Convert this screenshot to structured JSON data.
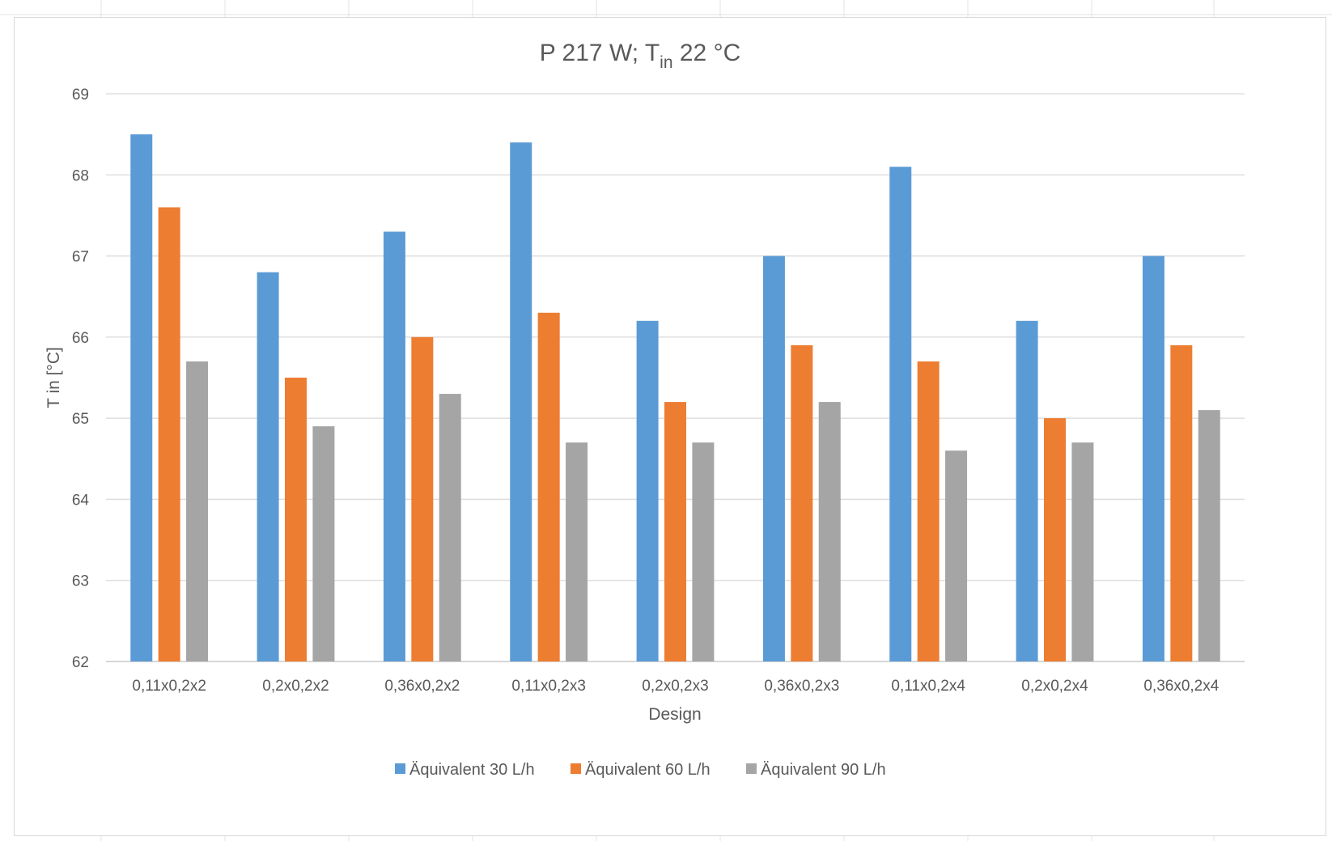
{
  "chart_data": {
    "type": "bar",
    "title": "P 217 W; T",
    "title_subscript": "in",
    "title_suffix": " 22 °C",
    "xlabel": "Design",
    "ylabel": "T in [°C]",
    "ylim": [
      62,
      69
    ],
    "yticks": [
      62,
      63,
      64,
      65,
      66,
      67,
      68,
      69
    ],
    "grid": true,
    "legend_position": "bottom",
    "categories": [
      "0,11x0,2x2",
      "0,2x0,2x2",
      "0,36x0,2x2",
      "0,11x0,2x3",
      "0,2x0,2x3",
      "0,36x0,2x3",
      "0,11x0,2x4",
      "0,2x0,2x4",
      "0,36x0,2x4"
    ],
    "series": [
      {
        "name": "Äquivalent 30 L/h",
        "color": "#5b9bd5",
        "values": [
          68.5,
          66.8,
          67.3,
          68.4,
          66.2,
          67.0,
          68.1,
          66.2,
          67.0
        ]
      },
      {
        "name": "Äquivalent 60 L/h",
        "color": "#ed7d31",
        "values": [
          67.6,
          65.5,
          66.0,
          66.3,
          65.2,
          65.9,
          65.7,
          65.0,
          65.9
        ]
      },
      {
        "name": "Äquivalent 90 L/h",
        "color": "#a5a5a5",
        "values": [
          65.7,
          64.9,
          65.3,
          64.7,
          64.7,
          65.2,
          64.6,
          64.7,
          65.1
        ]
      }
    ]
  }
}
